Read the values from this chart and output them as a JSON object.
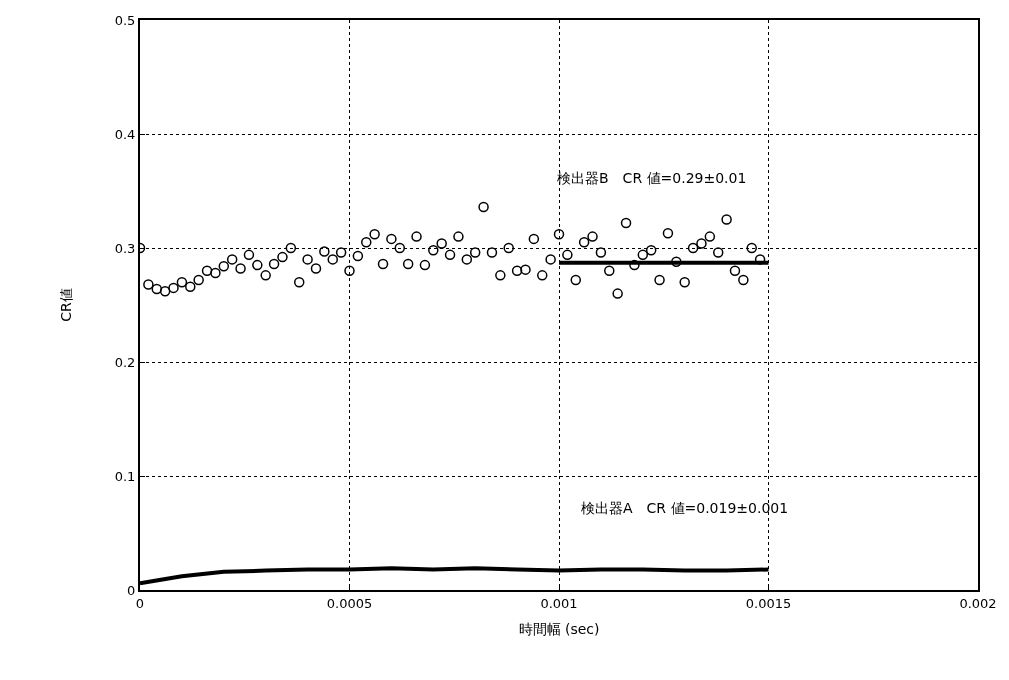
{
  "chart_data": {
    "type": "scatter",
    "xlabel": "時間幅 (sec)",
    "ylabel": "CR値",
    "xlim": [
      0,
      0.002
    ],
    "ylim": [
      0,
      0.5
    ],
    "xticks": [
      0,
      0.0005,
      0.001,
      0.0015,
      0.002
    ],
    "yticks": [
      0,
      0.1,
      0.2,
      0.3,
      0.4,
      0.5
    ],
    "grid": true,
    "annotations": [
      "検出器B　CR 値=0.29±0.01",
      "検出器A　CR 値=0.019±0.001"
    ],
    "series": [
      {
        "color": "#000000",
        "x": [
          0,
          2e-05,
          4e-05,
          6e-05,
          8e-05,
          0.0001,
          0.00012,
          0.00014,
          0.00016,
          0.00018,
          0.0002,
          0.00022,
          0.00024,
          0.00026,
          0.00028,
          0.0003,
          0.00032,
          0.00034,
          0.00036,
          0.00038,
          0.0004,
          0.00042,
          0.00044,
          0.00046,
          0.00048,
          0.0005,
          0.00052,
          0.00054,
          0.00056,
          0.00058,
          0.0006,
          0.00062,
          0.00064,
          0.00066,
          0.00068,
          0.0007,
          0.00072,
          0.00074,
          0.00076,
          0.00078,
          0.0008,
          0.00082,
          0.00084,
          0.00086,
          0.00088,
          0.0009,
          0.00092,
          0.00094,
          0.00096,
          0.00098,
          0.001,
          0.00102,
          0.00104,
          0.00106,
          0.00108,
          0.0011,
          0.00112,
          0.00114,
          0.00116,
          0.00118,
          0.0012,
          0.00122,
          0.00124,
          0.00126,
          0.00128,
          0.0013,
          0.00132,
          0.00134,
          0.00136,
          0.00138,
          0.0014,
          0.00142,
          0.00144,
          0.00146,
          0.00148
        ],
        "values": [
          0.3,
          0.268,
          0.264,
          0.262,
          0.265,
          0.27,
          0.266,
          0.272,
          0.28,
          0.278,
          0.284,
          0.29,
          0.282,
          0.294,
          0.285,
          0.276,
          0.286,
          0.292,
          0.3,
          0.27,
          0.29,
          0.282,
          0.297,
          0.29,
          0.296,
          0.28,
          0.293,
          0.305,
          0.312,
          0.286,
          0.308,
          0.3,
          0.286,
          0.31,
          0.285,
          0.298,
          0.304,
          0.294,
          0.31,
          0.29,
          0.296,
          0.336,
          0.296,
          0.276,
          0.3,
          0.28,
          0.281,
          0.308,
          0.276,
          0.29,
          0.312,
          0.294,
          0.272,
          0.305,
          0.31,
          0.296,
          0.28,
          0.26,
          0.322,
          0.285,
          0.294,
          0.298,
          0.272,
          0.313,
          0.288,
          0.27,
          0.3,
          0.304,
          0.31,
          0.296,
          0.325,
          0.28,
          0.272,
          0.3,
          0.29
        ]
      },
      {
        "type": "line",
        "color": "#000000",
        "x": [
          0.001,
          0.0015
        ],
        "values": [
          0.287,
          0.287
        ]
      },
      {
        "type": "line",
        "color": "#000000",
        "x": [
          0,
          5e-05,
          0.0001,
          0.00015,
          0.0002,
          0.0003,
          0.0004,
          0.0005,
          0.0006,
          0.0007,
          0.0008,
          0.0009,
          0.001,
          0.0011,
          0.0012,
          0.0013,
          0.0014,
          0.0015
        ],
        "values": [
          0.006,
          0.009,
          0.012,
          0.014,
          0.016,
          0.017,
          0.018,
          0.018,
          0.019,
          0.018,
          0.019,
          0.018,
          0.017,
          0.018,
          0.018,
          0.017,
          0.017,
          0.018
        ]
      }
    ]
  }
}
